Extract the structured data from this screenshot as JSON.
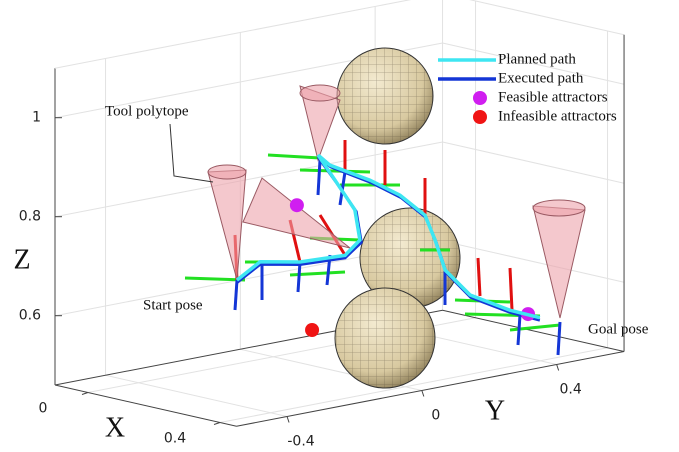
{
  "chart_data": {
    "type": "line3d",
    "xlabel": "X",
    "ylabel": "Y",
    "zlabel": "Z",
    "xlim": [
      -0.1,
      0.45
    ],
    "ylim": [
      -0.55,
      0.6
    ],
    "zlim": [
      0.46,
      1.1
    ],
    "xticks": [
      0,
      0.4
    ],
    "yticks": [
      -0.4,
      0,
      0.4
    ],
    "zticks": [
      0.6,
      0.8,
      1
    ],
    "grid": true,
    "legend": "upper right",
    "annotations": [
      "Tool polytope",
      "Start pose",
      "Goal pose"
    ],
    "series": [
      {
        "name": "Planned path",
        "type": "line",
        "color": "#3ee6f2",
        "x": [
          0.2,
          0.2,
          0.2,
          0.2,
          0.2,
          0.2,
          0.2,
          0.2,
          0.2,
          0.2,
          0.2,
          0.2,
          0.2,
          0.2,
          0.2,
          0.2,
          0.2
        ],
        "y": [
          -0.304,
          -0.235,
          -0.117,
          0.017,
          0.061,
          0.046,
          -0.013,
          -0.063,
          -0.028,
          0.091,
          0.18,
          0.254,
          0.284,
          0.314,
          0.388,
          0.506,
          0.595
        ],
        "z": [
          0.685,
          0.713,
          0.697,
          0.693,
          0.718,
          0.781,
          0.849,
          0.906,
          0.881,
          0.835,
          0.793,
          0.743,
          0.689,
          0.624,
          0.564,
          0.518,
          0.491
        ]
      },
      {
        "name": "Executed path",
        "type": "line",
        "color": "#1436d6",
        "x": [
          0.2,
          0.2,
          0.2,
          0.2,
          0.2,
          0.2,
          0.2,
          0.2,
          0.2,
          0.2,
          0.2,
          0.2,
          0.2,
          0.2,
          0.2,
          0.2,
          0.2
        ],
        "y": [
          -0.304,
          -0.235,
          -0.117,
          0.017,
          0.065,
          0.05,
          -0.01,
          -0.063,
          -0.025,
          0.094,
          0.183,
          0.257,
          0.287,
          0.317,
          0.39,
          0.508,
          0.595
        ],
        "z": [
          0.68,
          0.708,
          0.692,
          0.688,
          0.713,
          0.777,
          0.845,
          0.902,
          0.877,
          0.83,
          0.788,
          0.738,
          0.684,
          0.619,
          0.559,
          0.513,
          0.486
        ]
      },
      {
        "name": "Feasible attractors",
        "type": "scatter",
        "color": "#d01ef0",
        "x": [
          0.2,
          0.2
        ],
        "y": [
          -0.126,
          0.56
        ],
        "z": [
          0.813,
          0.503
        ]
      },
      {
        "name": "Infeasible attractors",
        "type": "scatter",
        "color": "#f01414",
        "x": [
          0.2
        ],
        "y": [
          -0.081
        ],
        "z": [
          0.555
        ]
      }
    ]
  }
}
